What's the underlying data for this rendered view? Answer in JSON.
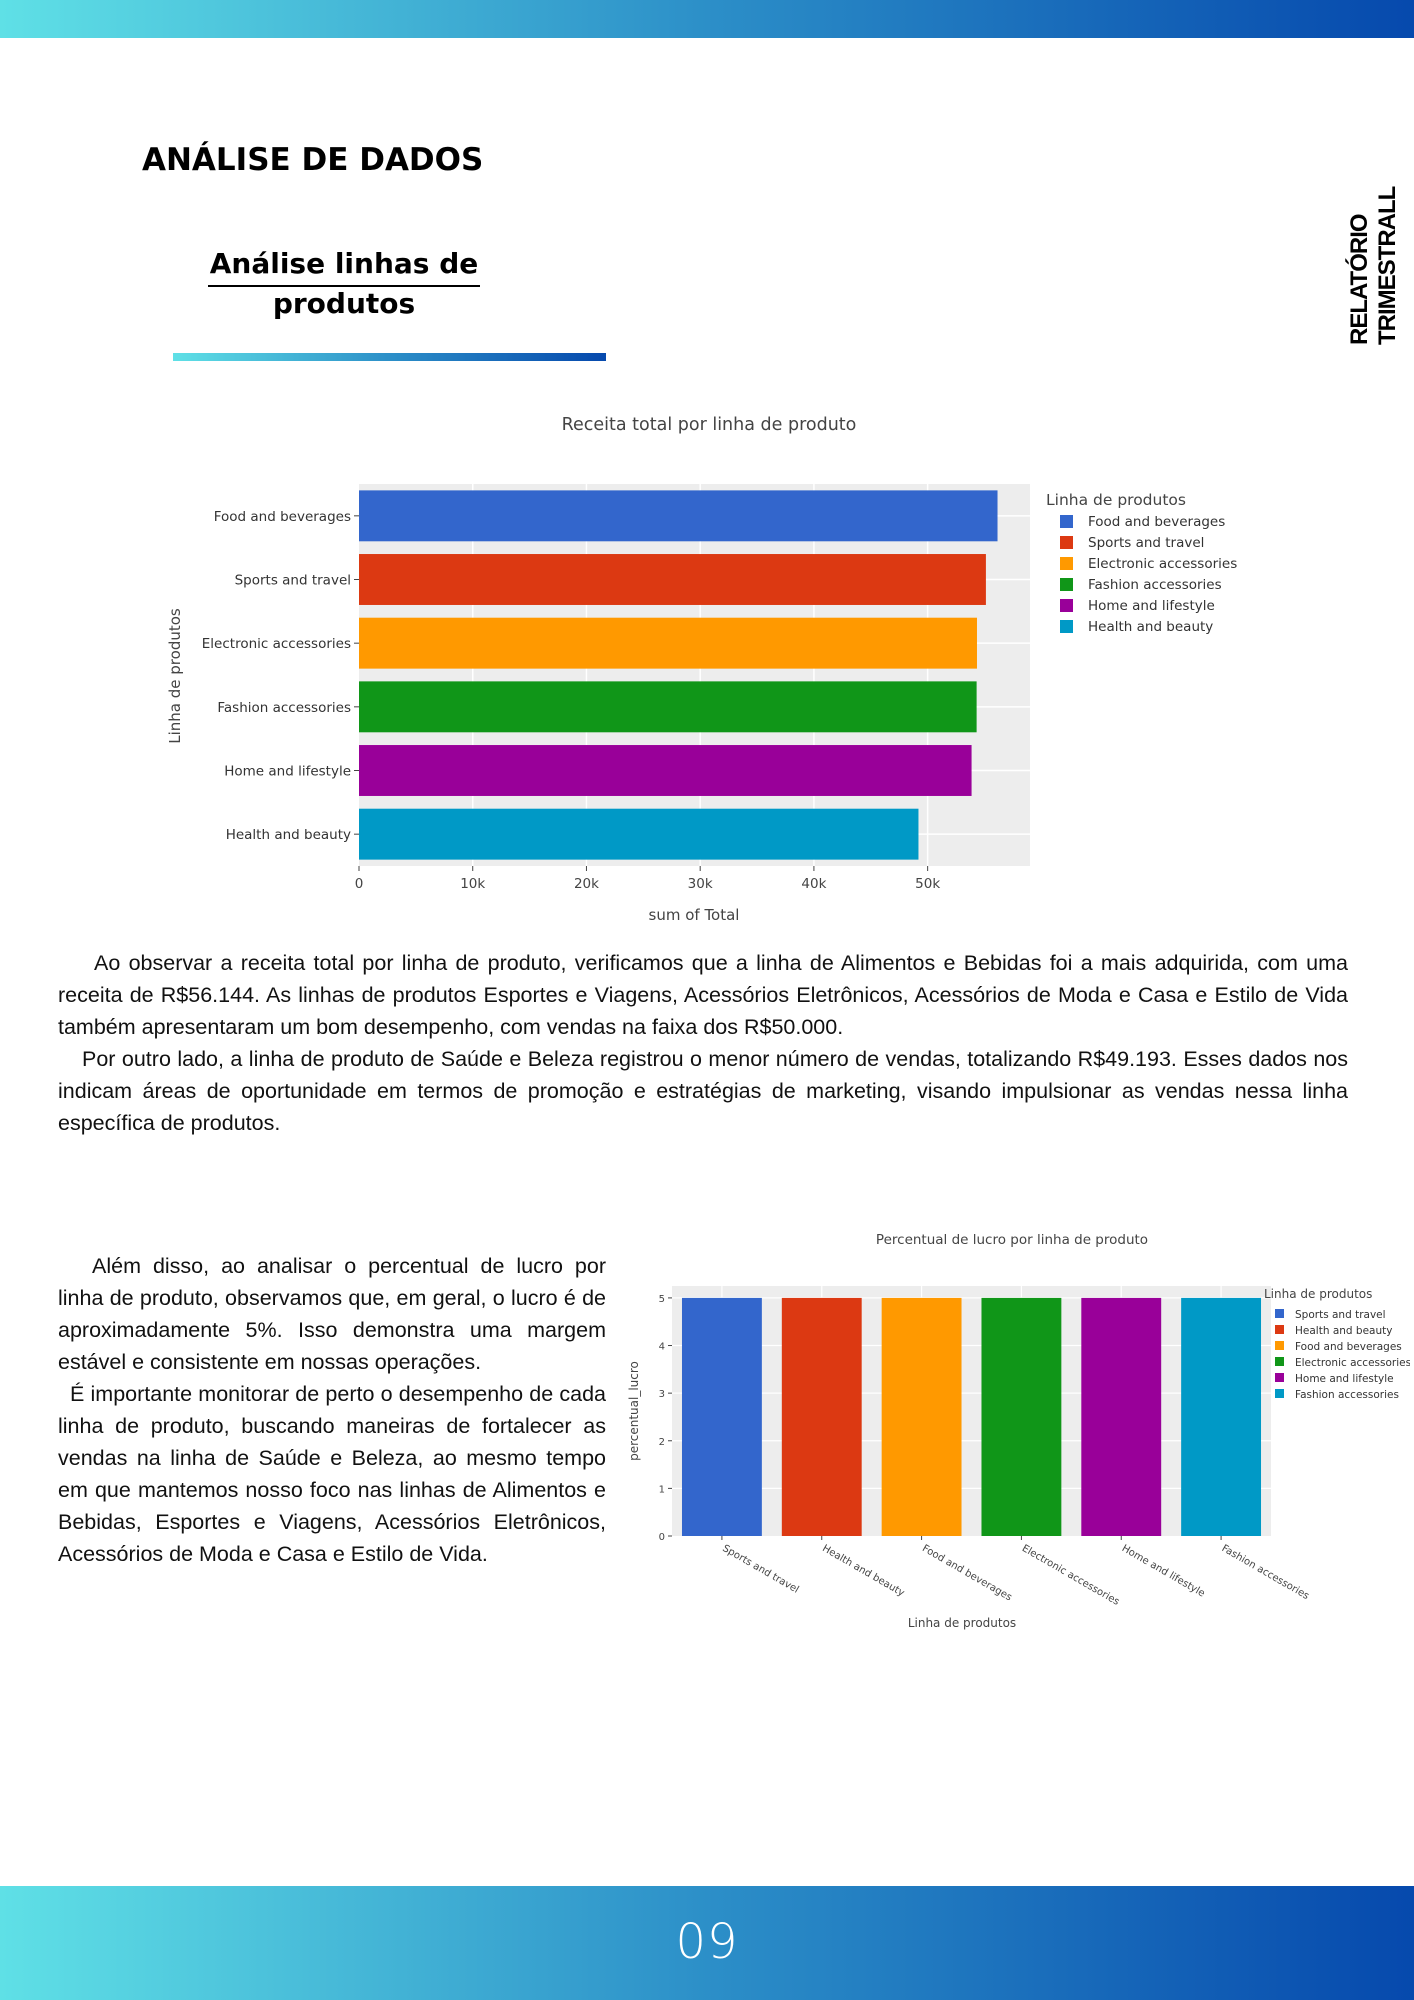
{
  "header": {
    "section_title": "ANÁLISE DE DADOS",
    "subtitle": "Análise linhas de produtos",
    "side_label": "RELATÓRIO TRIMESTRALL"
  },
  "colors": {
    "blue": "#3366cc",
    "red": "#dc3912",
    "orange": "#ff9900",
    "green": "#109618",
    "purple": "#990099",
    "teal": "#0099c6",
    "gradient_start": "#5fe0e6",
    "gradient_end": "#0649ad"
  },
  "paragraph1": {
    "lines": [
      "Ao observar a receita total por linha de produto, verificamos que a linha de Alimentos e Bebidas foi a mais adquirida, com uma receita de R$56.144. As linhas de produtos Esportes e Viagens, Acessórios Eletrônicos, Acessórios de Moda e Casa e Estilo de Vida também apresentaram um bom desempenho, com vendas na faixa dos R$50.000.",
      "Por outro lado, a linha de produto de Saúde e Beleza registrou o menor número de vendas, totalizando R$49.193. Esses dados nos indicam áreas de oportunidade em termos de promoção e estratégias de marketing, visando impulsionar as vendas nessa linha específica de produtos."
    ]
  },
  "paragraph2": {
    "lines": [
      "Além disso, ao analisar o percentual de lucro por linha de produto, observamos que, em geral, o lucro é de aproximadamente 5%. Isso demonstra uma margem estável e consistente em nossas operações.",
      "É importante monitorar de perto o desempenho de cada linha de produto, buscando maneiras de fortalecer as vendas na linha de Saúde e Beleza, ao mesmo tempo em que mantemos nosso foco nas linhas de Alimentos e Bebidas, Esportes e Viagens, Acessórios Eletrônicos, Acessórios de Moda e Casa e Estilo de Vida."
    ]
  },
  "footer": {
    "page_number": "09"
  },
  "chart_data": [
    {
      "type": "bar",
      "orientation": "horizontal",
      "title": "Receita total por linha de produto",
      "xlabel": "sum of Total",
      "ylabel": "Linha de produtos",
      "categories": [
        "Food and beverages",
        "Sports and travel",
        "Electronic accessories",
        "Fashion accessories",
        "Home and lifestyle",
        "Health and beauty"
      ],
      "values": [
        56144,
        55123,
        54338,
        54306,
        53862,
        49193
      ],
      "colors": [
        "#3366cc",
        "#dc3912",
        "#ff9900",
        "#109618",
        "#990099",
        "#0099c6"
      ],
      "xticks": [
        "0",
        "10k",
        "20k",
        "30k",
        "40k",
        "50k"
      ],
      "xtick_values": [
        0,
        10000,
        20000,
        30000,
        40000,
        50000
      ],
      "xlim": [
        0,
        59000
      ],
      "grid": true,
      "legend_title": "Linha de produtos",
      "legend": [
        "Food and beverages",
        "Sports and travel",
        "Electronic accessories",
        "Fashion accessories",
        "Home and lifestyle",
        "Health and beauty"
      ],
      "legend_position": "right"
    },
    {
      "type": "bar",
      "orientation": "vertical",
      "title": "Percentual de lucro por linha de produto",
      "xlabel": "Linha de produtos",
      "ylabel": "percentual_lucro",
      "categories": [
        "Sports and travel",
        "Health and beauty",
        "Food and beverages",
        "Electronic accessories",
        "Home and lifestyle",
        "Fashion accessories"
      ],
      "values": [
        5,
        5,
        5,
        5,
        5,
        5
      ],
      "colors": [
        "#3366cc",
        "#dc3912",
        "#ff9900",
        "#109618",
        "#990099",
        "#0099c6"
      ],
      "yticks": [
        "0",
        "1",
        "2",
        "3",
        "4",
        "5"
      ],
      "ytick_values": [
        0,
        1,
        2,
        3,
        4,
        5
      ],
      "ylim": [
        0,
        5.25
      ],
      "grid": true,
      "legend_title": "Linha de produtos",
      "legend": [
        "Sports and travel",
        "Health and beauty",
        "Food and beverages",
        "Electronic accessories",
        "Home and lifestyle",
        "Fashion accessories"
      ],
      "legend_position": "right"
    }
  ]
}
